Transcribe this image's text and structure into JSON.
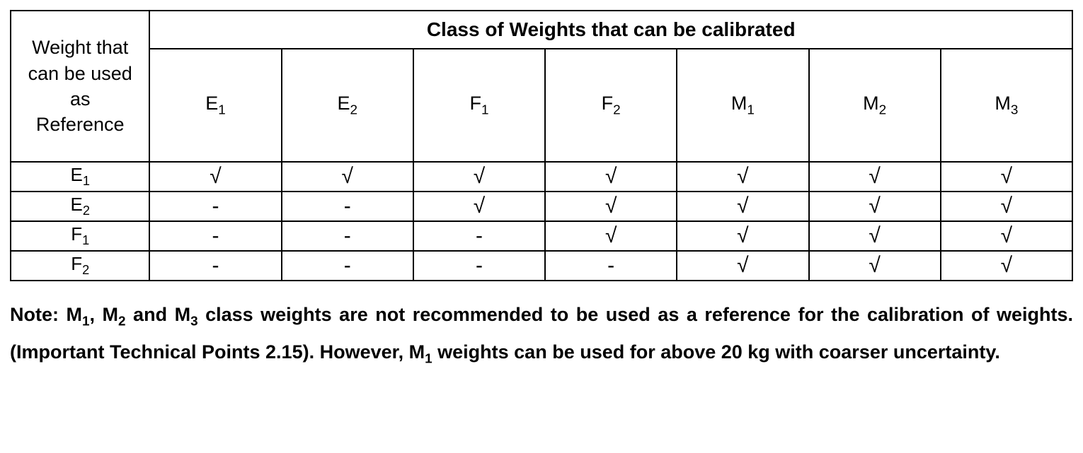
{
  "table": {
    "corner_header": "Weight that can be used as Reference",
    "span_header": "Class of Weights that can be calibrated",
    "columns": [
      {
        "letter": "E",
        "subscript": "1"
      },
      {
        "letter": "E",
        "subscript": "2"
      },
      {
        "letter": "F",
        "subscript": "1"
      },
      {
        "letter": "F",
        "subscript": "2"
      },
      {
        "letter": "M",
        "subscript": "1"
      },
      {
        "letter": "M",
        "subscript": "2"
      },
      {
        "letter": "M",
        "subscript": "3"
      }
    ],
    "rows": [
      {
        "label": {
          "letter": "E",
          "subscript": "1"
        },
        "cells": [
          "√",
          "√",
          "√",
          "√",
          "√",
          "√",
          "√"
        ]
      },
      {
        "label": {
          "letter": "E",
          "subscript": "2"
        },
        "cells": [
          "-",
          "-",
          "√",
          "√",
          "√",
          "√",
          "√"
        ]
      },
      {
        "label": {
          "letter": "F",
          "subscript": "1"
        },
        "cells": [
          "-",
          "-",
          "-",
          "√",
          "√",
          "√",
          "√"
        ]
      },
      {
        "label": {
          "letter": "F",
          "subscript": "2"
        },
        "cells": [
          "-",
          "-",
          "-",
          "-",
          "√",
          "√",
          "√"
        ]
      }
    ],
    "column_widths_pct": [
      13.1,
      12.42,
      12.42,
      12.42,
      12.42,
      12.42,
      12.42,
      12.42
    ],
    "border_color": "#000000",
    "background_color": "#ffffff",
    "text_color": "#000000",
    "header_fontsize_pt": 20,
    "cell_fontsize_pt": 20,
    "check_glyph": "√",
    "dash_glyph": "-"
  },
  "note": {
    "parts": [
      {
        "text": "Note: M"
      },
      {
        "sub": "1"
      },
      {
        "text": ", M"
      },
      {
        "sub": "2"
      },
      {
        "text": " and M"
      },
      {
        "sub": "3"
      },
      {
        "text": " class weights are not recommended to be used as a reference for the calibration of weights. (Important Technical Points 2.15). However, M"
      },
      {
        "sub": "1"
      },
      {
        "text": " weights can be used for above 20 kg with coarser uncertainty."
      }
    ],
    "fontsize_pt": 20,
    "font_weight": "bold",
    "text_color": "#000000"
  }
}
